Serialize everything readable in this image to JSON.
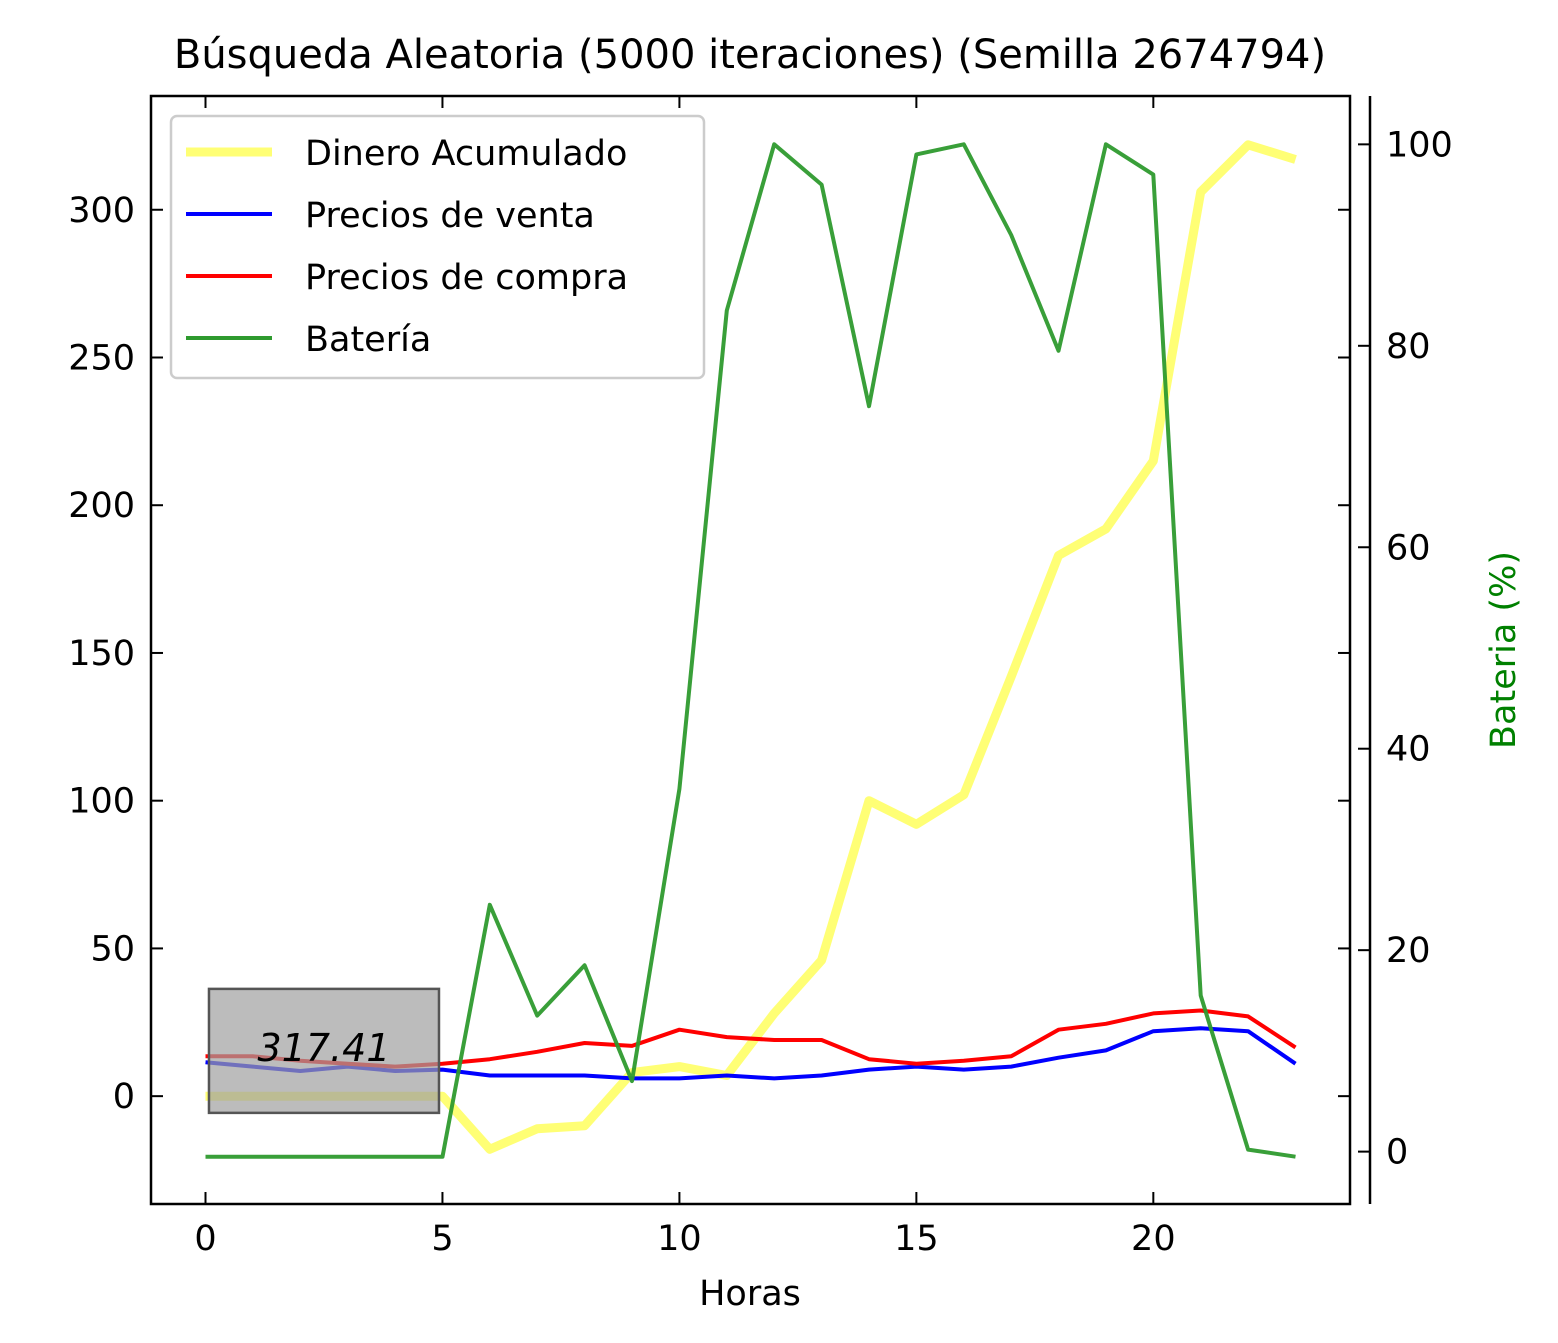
{
  "chart_data": {
    "type": "line",
    "title": "Búsqueda Aleatoria (5000 iteraciones) (Semilla 2674794)",
    "xlabel": "Horas",
    "ylabel": "",
    "y2label": "Bateria (%)",
    "xlim": [
      -1.15,
      24.15
    ],
    "ylim": [
      -36.5,
      338.5
    ],
    "y2lim": [
      -5.2,
      104.8
    ],
    "xticks": [
      "0",
      "5",
      "10",
      "15",
      "20"
    ],
    "xtick_values": [
      0,
      5,
      10,
      15,
      20
    ],
    "yticks": [
      "0",
      "50",
      "100",
      "150",
      "200",
      "250",
      "300"
    ],
    "ytick_values": [
      0,
      50,
      100,
      150,
      200,
      250,
      300
    ],
    "y2ticks": [
      "0",
      "20",
      "40",
      "60",
      "80",
      "100"
    ],
    "y2tick_values": [
      0,
      20,
      40,
      60,
      80,
      100
    ],
    "grid": false,
    "legend_position": "top-left",
    "x": [
      0,
      1,
      2,
      3,
      4,
      5,
      6,
      7,
      8,
      9,
      10,
      11,
      12,
      13,
      14,
      15,
      16,
      17,
      18,
      19,
      20,
      21,
      22,
      23
    ],
    "series": [
      {
        "name": "Dinero Acumulado",
        "axis": "left",
        "color": "#ffff66",
        "width": 9,
        "values": [
          0,
          0,
          0,
          0,
          0,
          0,
          -18,
          -11,
          -10,
          8,
          10,
          7,
          28,
          46,
          100,
          92,
          102,
          142,
          183,
          192,
          215,
          306,
          322,
          317
        ]
      },
      {
        "name": "Precios de venta",
        "axis": "left",
        "color": "#0000ff",
        "width": 4,
        "values": [
          11.5,
          10,
          8.5,
          10,
          8.5,
          9,
          7,
          7,
          7,
          6,
          6,
          7,
          6,
          7,
          9,
          10,
          9,
          10,
          13,
          15.5,
          22,
          23,
          22,
          11
        ]
      },
      {
        "name": "Precios de compra",
        "axis": "left",
        "color": "#ff0000",
        "width": 4,
        "values": [
          13.5,
          13.5,
          12,
          11,
          10,
          11,
          12.5,
          15,
          18,
          17,
          22.5,
          20,
          19,
          19,
          12.5,
          11,
          12,
          13.5,
          22.5,
          24.5,
          28,
          29,
          27,
          16.5
        ]
      },
      {
        "name": "Batería",
        "axis": "right",
        "color": "#2e9a2e",
        "width": 4,
        "values": [
          -0.5,
          -0.5,
          -0.5,
          -0.5,
          -0.5,
          -0.5,
          24.5,
          13.5,
          18.5,
          7,
          36,
          83.5,
          100,
          96,
          74,
          99,
          100,
          91,
          79.5,
          100,
          97,
          15.5,
          0.2,
          -0.5
        ]
      }
    ],
    "annotation": {
      "text": "317.41",
      "x": 2.5,
      "y": 16
    }
  }
}
